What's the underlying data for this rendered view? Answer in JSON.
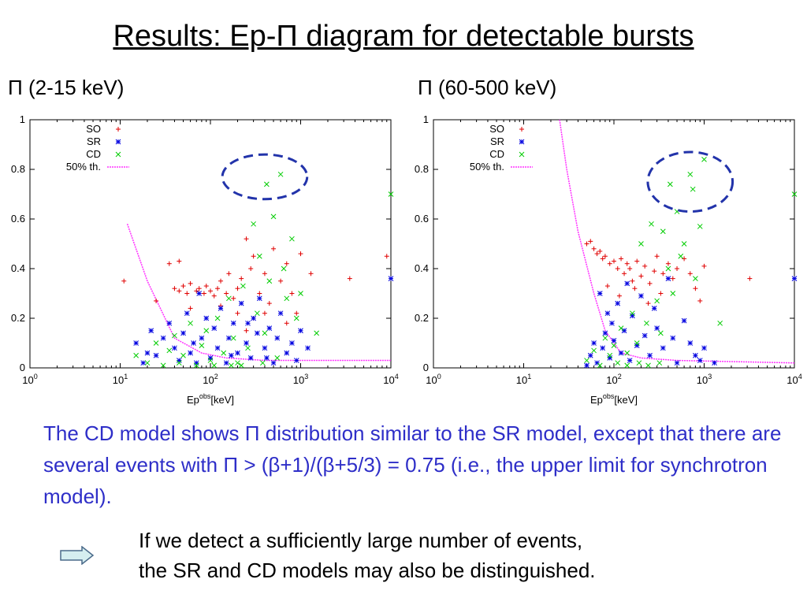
{
  "slide": {
    "title": "Results: Ep-Π diagram for detectable bursts",
    "label_left": "Π (2-15 keV)",
    "label_right": "Π (60-500 keV)",
    "paragraph": "The CD model shows Π distribution similar to the SR model, except that there are several events with Π > (β+1)/(β+5/3) = 0.75 (i.e., the upper limit for synchrotron model).",
    "note_line1": "If we detect a sufficiently large number of events,",
    "note_line2": "the SR and CD models may also be distinguished.",
    "arrow_icon": "right-arrow-icon"
  },
  "colors": {
    "SO": "#e00000",
    "SR": "#0000e0",
    "CD": "#00cc00",
    "threshold": "#ff33ff",
    "ellipse": "#2233aa",
    "paragraph": "#2e2ec8"
  },
  "chart_data": [
    {
      "type": "scatter",
      "xscale": "log",
      "xlim": [
        1,
        10000
      ],
      "ylim": [
        0,
        1
      ],
      "yticks": [
        "0",
        "0.2",
        "0.4",
        "0.6",
        "0.8",
        "1"
      ],
      "xticks": [
        "0",
        "1",
        "2",
        "3",
        "4"
      ],
      "xlabel_base": "Ep",
      "xlabel_sup": "obs",
      "xlabel_unit": "[keV]",
      "legend": [
        "SO",
        "SR",
        "CD",
        "50% th."
      ],
      "legend_position": "top-left",
      "threshold": [
        [
          12,
          0.58
        ],
        [
          20,
          0.35
        ],
        [
          40,
          0.12
        ],
        [
          80,
          0.06
        ],
        [
          150,
          0.04
        ],
        [
          400,
          0.03
        ],
        [
          1000,
          0.03
        ],
        [
          10000,
          0.03
        ]
      ],
      "highlight_ellipse": {
        "cx": 400,
        "cy": 0.77,
        "rx_dec": 0.47,
        "ry": 0.09
      },
      "series": [
        {
          "name": "SO",
          "marker": "+",
          "points": [
            [
              11,
              0.35
            ],
            [
              25,
              0.27
            ],
            [
              35,
              0.42
            ],
            [
              40,
              0.32
            ],
            [
              45,
              0.31
            ],
            [
              50,
              0.33
            ],
            [
              55,
              0.3
            ],
            [
              60,
              0.34
            ],
            [
              70,
              0.31
            ],
            [
              75,
              0.32
            ],
            [
              85,
              0.3
            ],
            [
              90,
              0.33
            ],
            [
              100,
              0.31
            ],
            [
              110,
              0.29
            ],
            [
              120,
              0.32
            ],
            [
              130,
              0.35
            ],
            [
              150,
              0.3
            ],
            [
              160,
              0.38
            ],
            [
              180,
              0.28
            ],
            [
              200,
              0.32
            ],
            [
              220,
              0.36
            ],
            [
              250,
              0.52
            ],
            [
              280,
              0.4
            ],
            [
              300,
              0.45
            ],
            [
              350,
              0.3
            ],
            [
              400,
              0.38
            ],
            [
              450,
              0.26
            ],
            [
              500,
              0.48
            ],
            [
              600,
              0.35
            ],
            [
              700,
              0.42
            ],
            [
              800,
              0.3
            ],
            [
              900,
              0.22
            ],
            [
              1000,
              0.46
            ],
            [
              1300,
              0.38
            ],
            [
              3500,
              0.36
            ],
            [
              9000,
              0.45
            ],
            [
              60,
              0.24
            ],
            [
              130,
              0.25
            ],
            [
              200,
              0.22
            ],
            [
              300,
              0.2
            ],
            [
              45,
              0.43
            ],
            [
              250,
              0.15
            ],
            [
              400,
              0.22
            ],
            [
              700,
              0.18
            ]
          ]
        },
        {
          "name": "SR",
          "marker": "*",
          "points": [
            [
              15,
              0.1
            ],
            [
              18,
              0.02
            ],
            [
              22,
              0.15
            ],
            [
              25,
              0.05
            ],
            [
              30,
              0.12
            ],
            [
              35,
              0.18
            ],
            [
              40,
              0.08
            ],
            [
              45,
              0.03
            ],
            [
              50,
              0.14
            ],
            [
              55,
              0.22
            ],
            [
              60,
              0.06
            ],
            [
              65,
              0.1
            ],
            [
              70,
              0.02
            ],
            [
              80,
              0.12
            ],
            [
              90,
              0.2
            ],
            [
              100,
              0.04
            ],
            [
              110,
              0.16
            ],
            [
              120,
              0.08
            ],
            [
              130,
              0.24
            ],
            [
              150,
              0.02
            ],
            [
              160,
              0.12
            ],
            [
              180,
              0.18
            ],
            [
              200,
              0.06
            ],
            [
              220,
              0.26
            ],
            [
              250,
              0.1
            ],
            [
              280,
              0.04
            ],
            [
              300,
              0.2
            ],
            [
              330,
              0.14
            ],
            [
              350,
              0.28
            ],
            [
              400,
              0.08
            ],
            [
              450,
              0.16
            ],
            [
              500,
              0.02
            ],
            [
              550,
              0.12
            ],
            [
              600,
              0.22
            ],
            [
              700,
              0.06
            ],
            [
              800,
              0.1
            ],
            [
              900,
              0.03
            ],
            [
              1000,
              0.15
            ],
            [
              1200,
              0.08
            ],
            [
              10000,
              0.36
            ],
            [
              20,
              0.06
            ],
            [
              75,
              0.3
            ],
            [
              170,
              0.05
            ],
            [
              260,
              0.18
            ],
            [
              420,
              0.04
            ]
          ]
        },
        {
          "name": "CD",
          "marker": "x",
          "points": [
            [
              15,
              0.05
            ],
            [
              20,
              0.02
            ],
            [
              25,
              0.1
            ],
            [
              30,
              0.01
            ],
            [
              35,
              0.07
            ],
            [
              40,
              0.13
            ],
            [
              45,
              0.02
            ],
            [
              50,
              0.05
            ],
            [
              60,
              0.18
            ],
            [
              70,
              0.01
            ],
            [
              80,
              0.09
            ],
            [
              90,
              0.15
            ],
            [
              100,
              0.03
            ],
            [
              120,
              0.2
            ],
            [
              140,
              0.06
            ],
            [
              160,
              0.28
            ],
            [
              180,
              0.12
            ],
            [
              200,
              0.02
            ],
            [
              230,
              0.33
            ],
            [
              260,
              0.08
            ],
            [
              300,
              0.58
            ],
            [
              330,
              0.22
            ],
            [
              350,
              0.45
            ],
            [
              400,
              0.14
            ],
            [
              420,
              0.74
            ],
            [
              450,
              0.35
            ],
            [
              500,
              0.61
            ],
            [
              550,
              0.04
            ],
            [
              600,
              0.78
            ],
            [
              650,
              0.4
            ],
            [
              700,
              0.28
            ],
            [
              800,
              0.52
            ],
            [
              900,
              0.2
            ],
            [
              1000,
              0.3
            ],
            [
              1500,
              0.14
            ],
            [
              10000,
              0.7
            ],
            [
              110,
              0.01
            ],
            [
              170,
              0.01
            ],
            [
              220,
              0.01
            ],
            [
              380,
              0.02
            ]
          ]
        }
      ]
    },
    {
      "type": "scatter",
      "xscale": "log",
      "xlim": [
        1,
        10000
      ],
      "ylim": [
        0,
        1
      ],
      "yticks": [
        "0",
        "0.2",
        "0.4",
        "0.6",
        "0.8",
        "1"
      ],
      "xticks": [
        "0",
        "1",
        "2",
        "3",
        "4"
      ],
      "xlabel_base": "Ep",
      "xlabel_sup": "obs",
      "xlabel_unit": "[keV]",
      "legend": [
        "SO",
        "SR",
        "CD",
        "50% th."
      ],
      "legend_position": "top-left",
      "threshold": [
        [
          25,
          1.0
        ],
        [
          30,
          0.8
        ],
        [
          40,
          0.55
        ],
        [
          60,
          0.3
        ],
        [
          80,
          0.15
        ],
        [
          120,
          0.06
        ],
        [
          200,
          0.04
        ],
        [
          500,
          0.03
        ],
        [
          10000,
          0.02
        ]
      ],
      "highlight_ellipse": {
        "cx": 700,
        "cy": 0.75,
        "rx_dec": 0.47,
        "ry": 0.12
      },
      "series": [
        {
          "name": "SO",
          "marker": "+",
          "points": [
            [
              50,
              0.5
            ],
            [
              55,
              0.51
            ],
            [
              60,
              0.48
            ],
            [
              65,
              0.46
            ],
            [
              70,
              0.47
            ],
            [
              75,
              0.44
            ],
            [
              80,
              0.45
            ],
            [
              90,
              0.42
            ],
            [
              100,
              0.43
            ],
            [
              110,
              0.4
            ],
            [
              120,
              0.44
            ],
            [
              130,
              0.38
            ],
            [
              140,
              0.42
            ],
            [
              150,
              0.4
            ],
            [
              160,
              0.35
            ],
            [
              180,
              0.43
            ],
            [
              200,
              0.37
            ],
            [
              220,
              0.41
            ],
            [
              250,
              0.34
            ],
            [
              280,
              0.39
            ],
            [
              300,
              0.45
            ],
            [
              350,
              0.38
            ],
            [
              400,
              0.42
            ],
            [
              450,
              0.36
            ],
            [
              500,
              0.4
            ],
            [
              600,
              0.44
            ],
            [
              700,
              0.38
            ],
            [
              800,
              0.32
            ],
            [
              900,
              0.27
            ],
            [
              1000,
              0.41
            ],
            [
              3200,
              0.36
            ],
            [
              85,
              0.33
            ],
            [
              115,
              0.29
            ],
            [
              170,
              0.32
            ],
            [
              240,
              0.26
            ],
            [
              330,
              0.3
            ]
          ]
        },
        {
          "name": "SR",
          "marker": "*",
          "points": [
            [
              50,
              0.01
            ],
            [
              55,
              0.05
            ],
            [
              60,
              0.1
            ],
            [
              65,
              0.02
            ],
            [
              70,
              0.3
            ],
            [
              75,
              0.08
            ],
            [
              80,
              0.14
            ],
            [
              85,
              0.22
            ],
            [
              90,
              0.04
            ],
            [
              95,
              0.18
            ],
            [
              100,
              0.11
            ],
            [
              110,
              0.26
            ],
            [
              120,
              0.06
            ],
            [
              130,
              0.15
            ],
            [
              140,
              0.34
            ],
            [
              150,
              0.03
            ],
            [
              160,
              0.21
            ],
            [
              180,
              0.09
            ],
            [
              200,
              0.29
            ],
            [
              220,
              0.13
            ],
            [
              250,
              0.05
            ],
            [
              280,
              0.24
            ],
            [
              300,
              0.16
            ],
            [
              350,
              0.08
            ],
            [
              400,
              0.36
            ],
            [
              450,
              0.12
            ],
            [
              500,
              0.02
            ],
            [
              600,
              0.19
            ],
            [
              700,
              0.1
            ],
            [
              800,
              0.05
            ],
            [
              900,
              0.03
            ],
            [
              1000,
              0.08
            ],
            [
              1300,
              0.02
            ],
            [
              10000,
              0.36
            ]
          ]
        },
        {
          "name": "CD",
          "marker": "x",
          "points": [
            [
              50,
              0.03
            ],
            [
              60,
              0.07
            ],
            [
              70,
              0.01
            ],
            [
              80,
              0.12
            ],
            [
              90,
              0.05
            ],
            [
              100,
              0.09
            ],
            [
              110,
              0.02
            ],
            [
              120,
              0.16
            ],
            [
              140,
              0.06
            ],
            [
              160,
              0.22
            ],
            [
              180,
              0.1
            ],
            [
              200,
              0.5
            ],
            [
              230,
              0.18
            ],
            [
              260,
              0.58
            ],
            [
              300,
              0.27
            ],
            [
              330,
              0.14
            ],
            [
              350,
              0.55
            ],
            [
              400,
              0.4
            ],
            [
              420,
              0.74
            ],
            [
              450,
              0.3
            ],
            [
              500,
              0.63
            ],
            [
              550,
              0.45
            ],
            [
              600,
              0.5
            ],
            [
              700,
              0.78
            ],
            [
              750,
              0.72
            ],
            [
              800,
              0.36
            ],
            [
              900,
              0.57
            ],
            [
              1000,
              0.84
            ],
            [
              1500,
              0.18
            ],
            [
              10000,
              0.7
            ],
            [
              140,
              0.01
            ],
            [
              190,
              0.02
            ],
            [
              240,
              0.01
            ],
            [
              320,
              0.02
            ]
          ]
        }
      ]
    }
  ]
}
